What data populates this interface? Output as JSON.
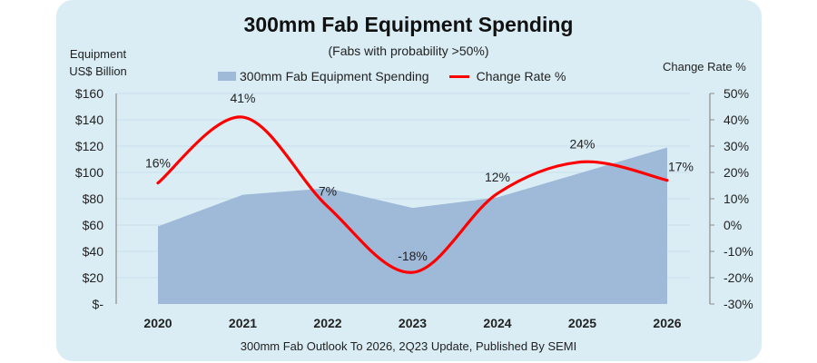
{
  "chart_data": {
    "type": "area+line",
    "title": "300mm Fab Equipment Spending",
    "subtitle": "(Fabs with probability >50%)",
    "ylabel_left": [
      "Equipment",
      "US$ Billion"
    ],
    "ylabel_right": "Change Rate %",
    "footer": "300mm Fab Outlook To 2026, 2Q23 Update, Published By SEMI",
    "categories": [
      "2020",
      "2021",
      "2022",
      "2023",
      "2024",
      "2025",
      "2026"
    ],
    "series": [
      {
        "name": "300mm Fab Equipment Spending",
        "type": "area",
        "axis": "left",
        "color": "#9fb9d9",
        "values": [
          59,
          83,
          88,
          73,
          81,
          100,
          119
        ]
      },
      {
        "name": "Change Rate %",
        "type": "line",
        "axis": "right",
        "color": "#ff0000",
        "smooth": true,
        "values": [
          16,
          41,
          7,
          -18,
          12,
          24,
          17
        ],
        "labels": [
          "16%",
          "41%",
          "7%",
          "-18%",
          "12%",
          "24%",
          "17%"
        ]
      }
    ],
    "y_left": {
      "range": [
        0,
        160
      ],
      "ticks": [
        0,
        20,
        40,
        60,
        80,
        100,
        120,
        140,
        160
      ],
      "tick_labels": [
        "$-",
        "$20",
        "$40",
        "$60",
        "$80",
        "$100",
        "$120",
        "$140",
        "$160"
      ]
    },
    "y_right": {
      "range": [
        -30,
        50
      ],
      "ticks": [
        -30,
        -20,
        -10,
        0,
        10,
        20,
        30,
        40,
        50
      ],
      "tick_labels": [
        "-30%",
        "-20%",
        "-10%",
        "0%",
        "10%",
        "20%",
        "30%",
        "40%",
        "50%"
      ]
    },
    "grid": true,
    "legend": "top-center"
  }
}
